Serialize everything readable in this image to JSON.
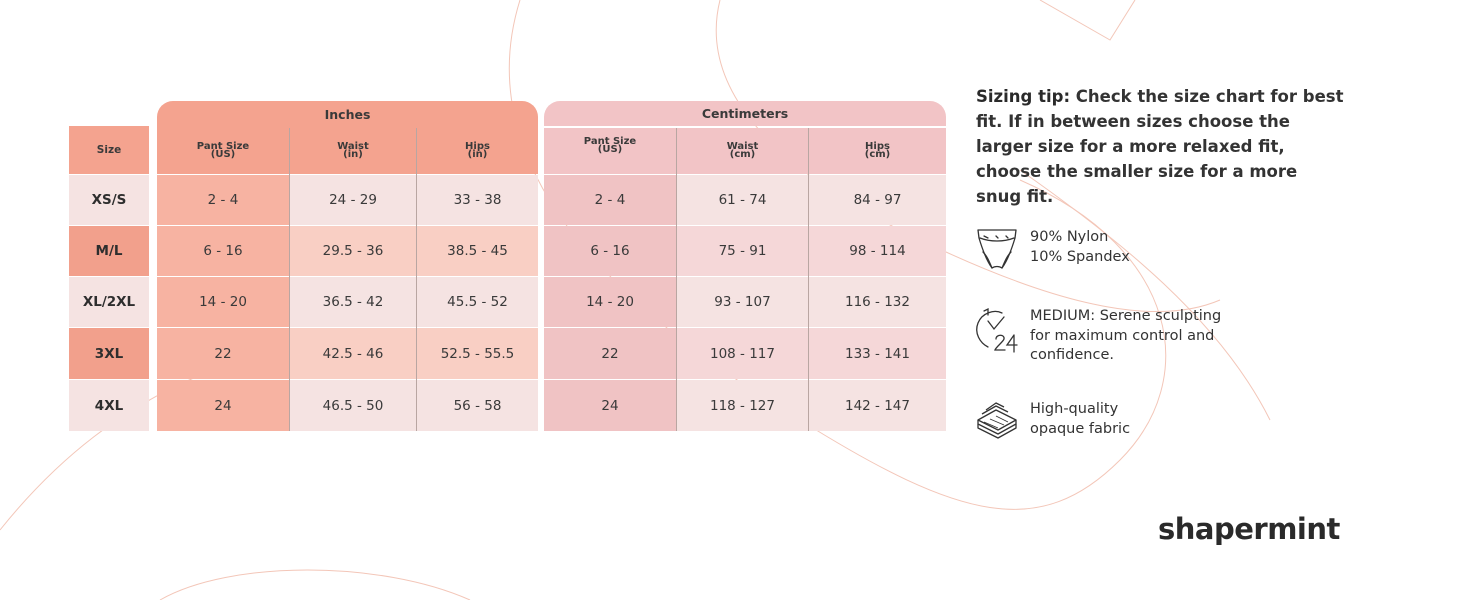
{
  "table": {
    "size_header": "Size",
    "inches_header": "Inches",
    "cm_header": "Centimeters",
    "col_headers": [
      [
        "Pant Size",
        "(US)"
      ],
      [
        "Waist",
        "(in)"
      ],
      [
        "Hips",
        "(in)"
      ],
      [
        "Pant Size",
        "(US)"
      ],
      [
        "Waist",
        "(cm)"
      ],
      [
        "Hips",
        "(cm)"
      ]
    ],
    "rows": [
      {
        "size": "XS/S",
        "values": [
          "2 - 4",
          "24 - 29",
          "33 - 38",
          "2 - 4",
          "61 - 74",
          "84 - 97"
        ]
      },
      {
        "size": "M/L",
        "values": [
          "6 - 16",
          "29.5 - 36",
          "38.5 - 45",
          "6 - 16",
          "75 - 91",
          "98 - 114"
        ]
      },
      {
        "size": "XL/2XL",
        "values": [
          "14 - 20",
          "36.5 - 42",
          "45.5 - 52",
          "14 - 20",
          "93 - 107",
          "116 - 132"
        ]
      },
      {
        "size": "3XL",
        "values": [
          "22",
          "42.5 - 46",
          "52.5 - 55.5",
          "22",
          "108 - 117",
          "133 - 141"
        ]
      },
      {
        "size": "4XL",
        "values": [
          "24",
          "46.5 - 50",
          "56 - 58",
          "24",
          "118 - 127",
          "142 - 147"
        ]
      }
    ]
  },
  "tip": {
    "lead": "Sizing tip:",
    "text": " Check the size chart for best fit. If in between sizes choose the larger size for a more relaxed fit, choose the smaller size for a more snug fit."
  },
  "features": [
    {
      "icon": "briefs-icon",
      "lines": [
        "90% Nylon",
        "10% Spandex"
      ]
    },
    {
      "icon": "clock-24-icon",
      "lines": [
        "MEDIUM: Serene sculpting",
        "for maximum control and",
        "confidence."
      ]
    },
    {
      "icon": "fabric-layers-icon",
      "lines": [
        "High-quality",
        "opaque fabric"
      ]
    }
  ],
  "brand": {
    "logo_text": "shapermint"
  },
  "colors": {
    "inches_header": "#f4a38f",
    "inches_dark": "#f7b3a2",
    "inches_light": "#f9cfc4",
    "pale": "#f5e3e2",
    "cm_header": "#f2c4c6",
    "cm_dark": "#f0c3c4",
    "cm_light": "#f5d7d8",
    "size_dark": "#f2a08c",
    "accent_lines": "#f3c0ae"
  }
}
